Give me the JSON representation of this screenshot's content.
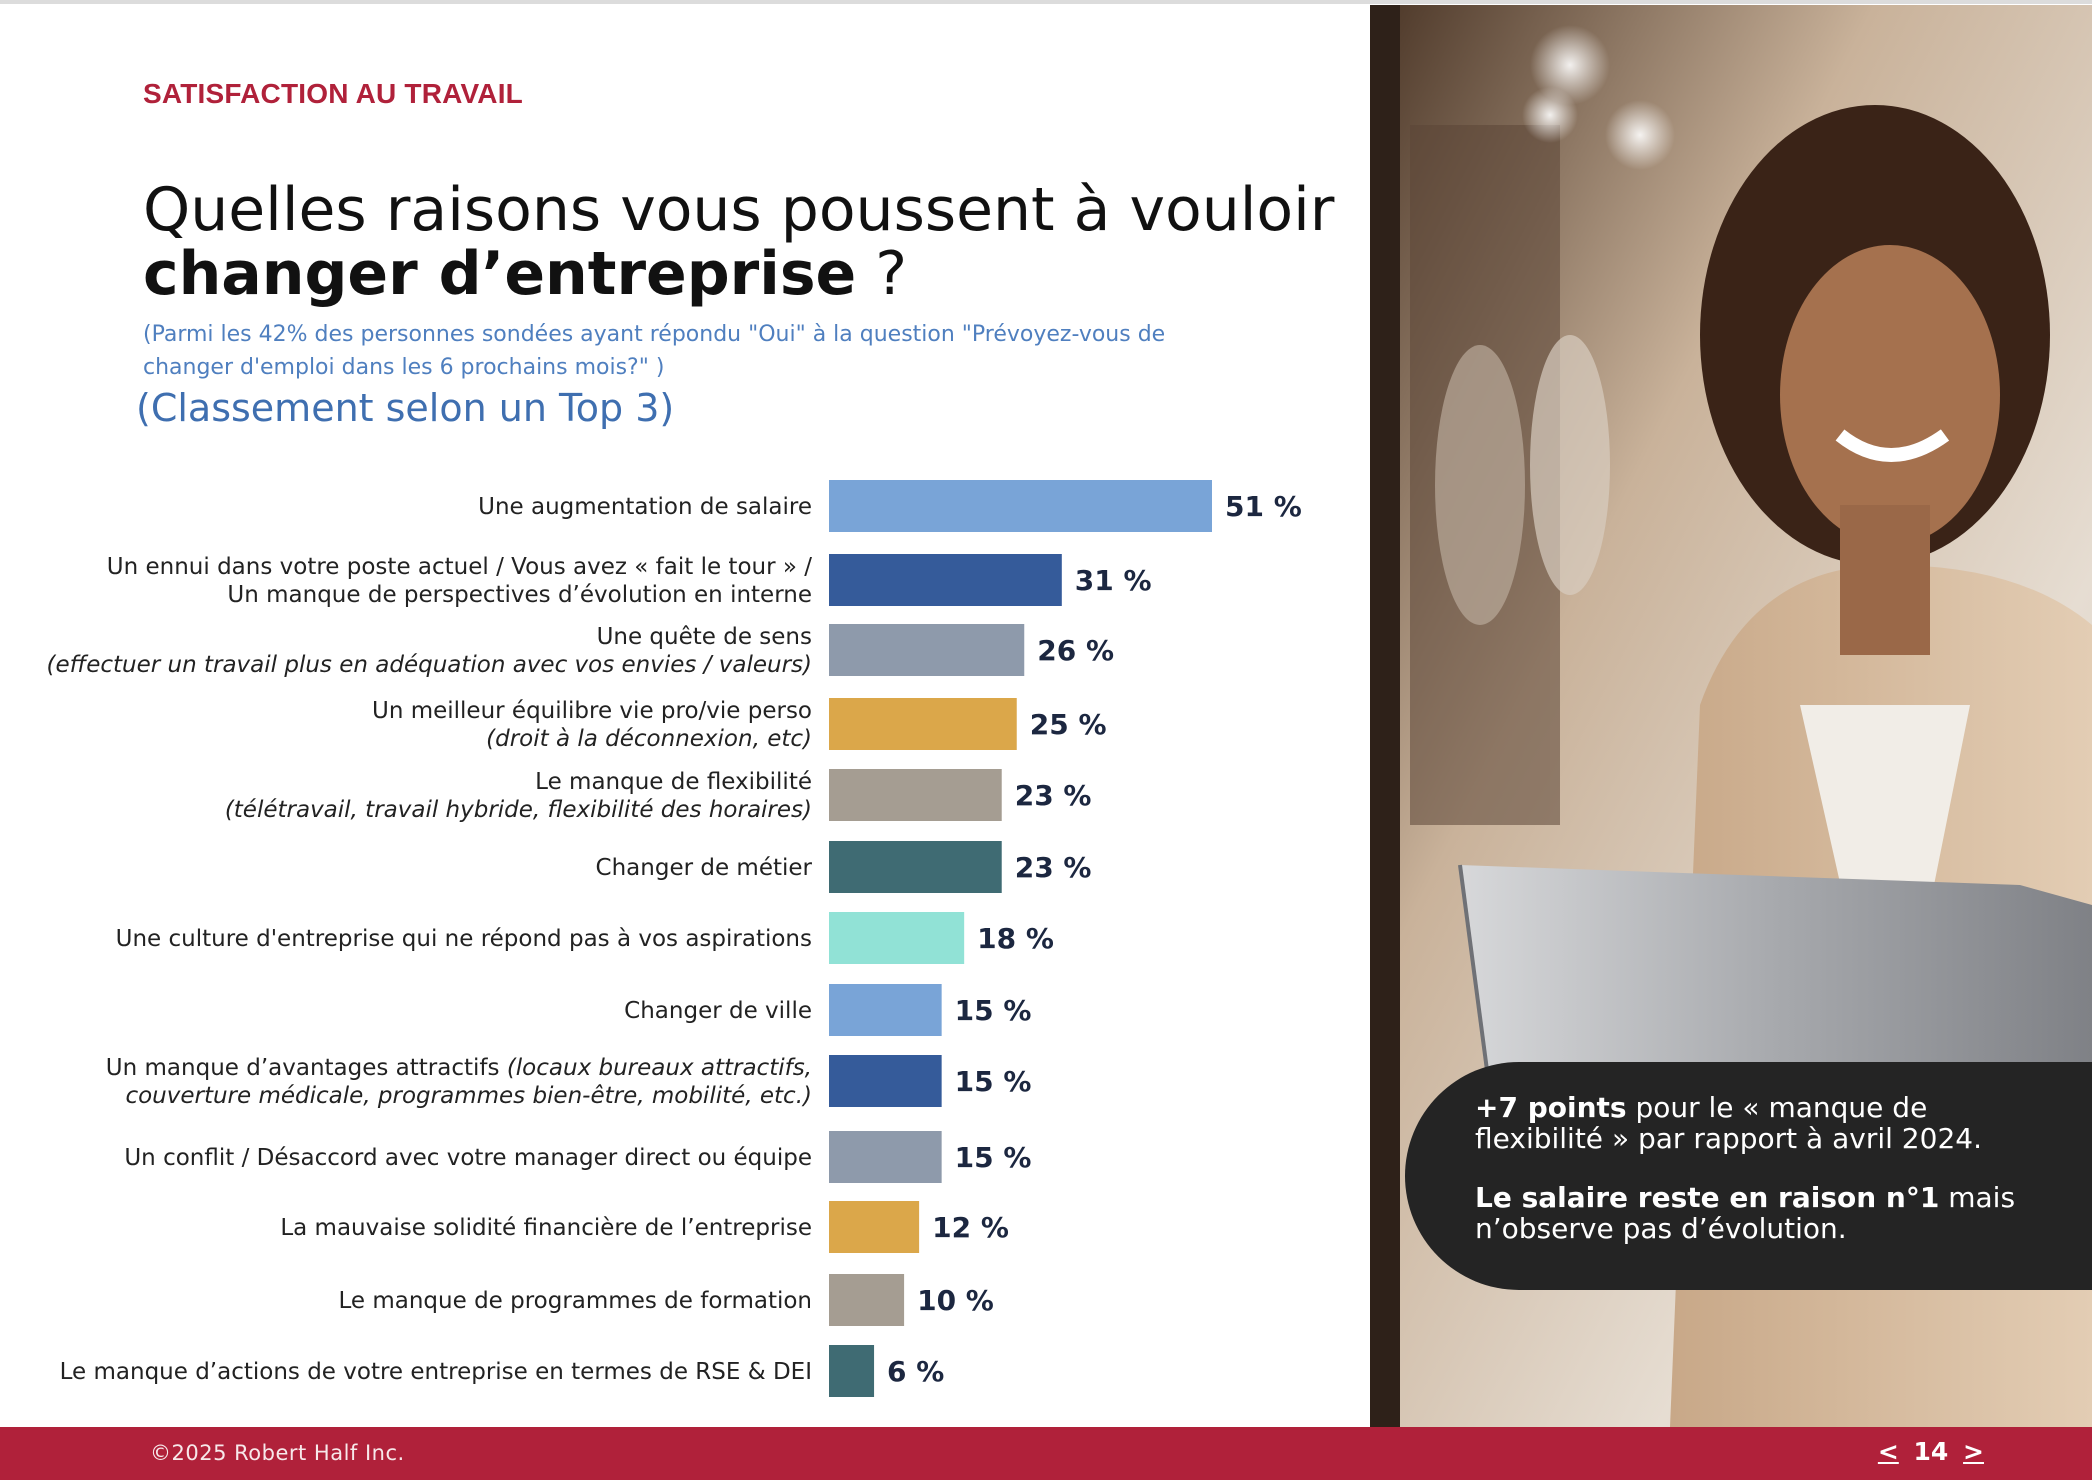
{
  "header": {
    "section_label": "SATISFACTION AU TRAVAIL",
    "title_part1": "Quelles raisons vous poussent à vouloir ",
    "title_bold": "changer d’entreprise",
    "title_part2": " ?",
    "subtitle": "(Parmi les 42% des personnes sondées ayant répondu \"Oui\" à la question \"Prévoyez-vous de changer d'emploi dans les 6 prochains mois?\" )",
    "ranking_note": "(Classement selon un Top 3)"
  },
  "chart_data": {
    "type": "bar",
    "orientation": "horizontal",
    "unit": "%",
    "xlim": [
      0,
      51
    ],
    "categories": [
      {
        "main": [
          "Une augmentation de salaire"
        ],
        "sub": null,
        "value": 51,
        "label": "51 %",
        "color": "#79a4d7"
      },
      {
        "main": [
          "Un ennui dans votre poste actuel / Vous avez « fait le tour » /",
          "Un manque de perspectives d’évolution en interne"
        ],
        "sub": null,
        "value": 31,
        "label": "31 %",
        "color": "#355b9a"
      },
      {
        "main": [
          "Une quête de sens"
        ],
        "sub": "(effectuer un travail plus en adéquation avec vos envies / valeurs)",
        "value": 26,
        "label": "26 %",
        "color": "#8e9aab"
      },
      {
        "main": [
          "Un meilleur équilibre vie pro/vie perso"
        ],
        "sub": "(droit à la déconnexion, etc)",
        "value": 25,
        "label": "25 %",
        "color": "#dba74a"
      },
      {
        "main": [
          "Le manque de flexibilité"
        ],
        "sub": "(télétravail, travail hybride, flexibilité des horaires)",
        "value": 23,
        "label": "23 %",
        "color": "#a59d92"
      },
      {
        "main": [
          "Changer de métier"
        ],
        "sub": null,
        "value": 23,
        "label": "23 %",
        "color": "#3f6b73"
      },
      {
        "main": [
          "Une culture d'entreprise qui ne répond pas à vos aspirations"
        ],
        "sub": null,
        "value": 18,
        "label": "18 %",
        "color": "#91e2d6"
      },
      {
        "main": [
          "Changer de ville"
        ],
        "sub": null,
        "value": 15,
        "label": "15 %",
        "color": "#79a4d7"
      },
      {
        "main": [
          "Un manque d’avantages attractifs"
        ],
        "sub": "(locaux bureaux attractifs, couverture médicale, programmes bien-être, mobilité, etc.)",
        "value": 15,
        "label": "15 %",
        "color": "#355b9a"
      },
      {
        "main": [
          "Un conflit / Désaccord avec votre manager direct ou équipe"
        ],
        "sub": null,
        "value": 15,
        "label": "15 %",
        "color": "#8e9aab"
      },
      {
        "main": [
          "La mauvaise solidité financière de l’entreprise"
        ],
        "sub": null,
        "value": 12,
        "label": "12 %",
        "color": "#dba74a"
      },
      {
        "main": [
          "Le manque de programmes de formation"
        ],
        "sub": null,
        "value": 10,
        "label": "10 %",
        "color": "#a59d92"
      },
      {
        "main": [
          "Le manque d’actions de votre entreprise en termes de RSE & DEI"
        ],
        "sub": null,
        "value": 6,
        "label": "6 %",
        "color": "#3f6b73"
      }
    ]
  },
  "callout": {
    "line1_bold": "+7 points",
    "line1_rest": " pour le « manque de flexibilité » par rapport à avril 2024.",
    "line2_bold": "Le salaire reste en raison n°1",
    "line2_rest": " mais n’observe pas d’évolution."
  },
  "footer": {
    "copyright": "©2025 Robert Half Inc.",
    "prev": "<",
    "page_number": "14",
    "next": ">"
  },
  "colors": {
    "brand_red": "#b0213a",
    "subtitle_blue": "#4f7fbf",
    "callout_bg": "#242424"
  }
}
